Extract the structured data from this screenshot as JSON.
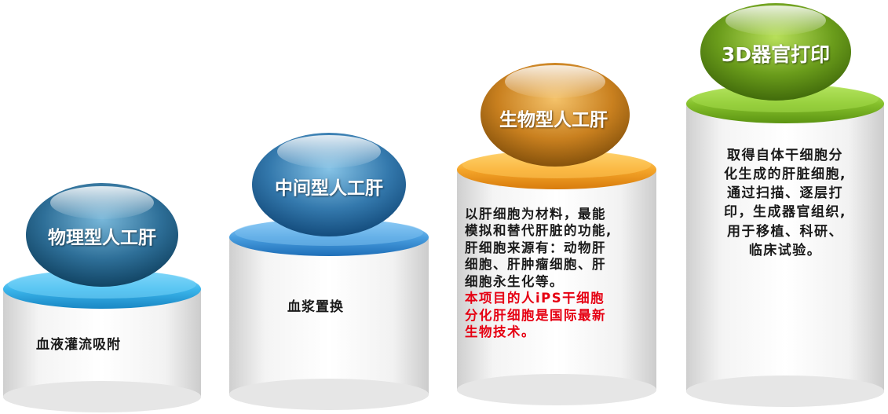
{
  "colors": {
    "blue_dark": "#0e5072",
    "blue_mid": "#2f82b8",
    "blue_light": "#4fc0ee",
    "orange": "#e08a18",
    "green": "#6da01a",
    "red_text": "#e60012"
  },
  "stages": [
    {
      "title": "物理型人工肝",
      "description": [
        "血液灌流吸附"
      ],
      "highlight": []
    },
    {
      "title": "中间型人工肝",
      "description": [
        "血浆置换"
      ],
      "highlight": []
    },
    {
      "title": "生物型人工肝",
      "description": [
        "以肝细胞为材料，最能",
        "模拟和替代肝脏的功能,",
        "肝细胞来源有：动物肝",
        "细胞、肝肿瘤细胞、肝",
        "细胞永生化等。"
      ],
      "highlight": [
        "本项目的人iPS干细胞",
        "分化肝细胞是国际最新",
        "生物技术。"
      ]
    },
    {
      "title": "3D器官打印",
      "description": [
        "取得自体干细胞分",
        "化生成的肝脏细胞,",
        "通过扫描、逐层打",
        "印，生成器官组织,",
        "用于移植、科研、",
        "临床试验。"
      ],
      "highlight": []
    }
  ]
}
